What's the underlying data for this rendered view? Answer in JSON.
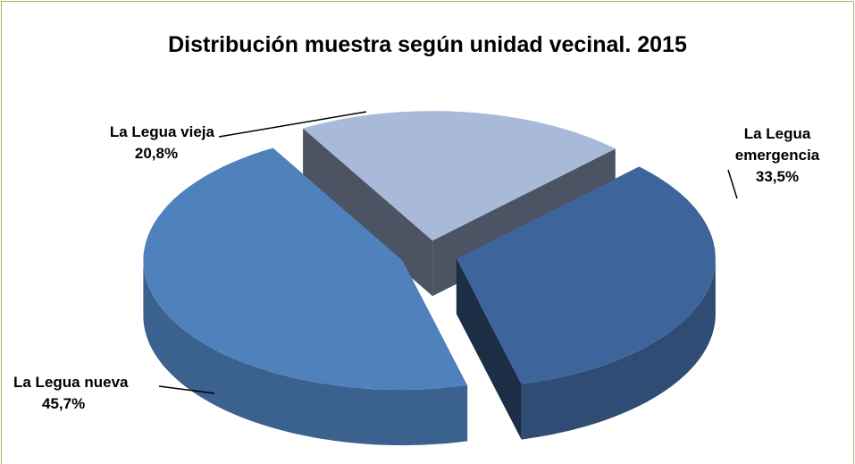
{
  "chart_data": {
    "type": "pie",
    "title": "Distribución muestra según unidad vecinal. 2015",
    "categories": [
      "La Legua vieja",
      "La Legua emergencia",
      "La Legua nueva"
    ],
    "values": [
      20.8,
      33.5,
      45.7
    ],
    "value_labels": [
      "20,8%",
      "33,5%",
      "45,7%"
    ],
    "colors": [
      "#a9b9d9",
      "#3e659b",
      "#4f81bd"
    ]
  }
}
